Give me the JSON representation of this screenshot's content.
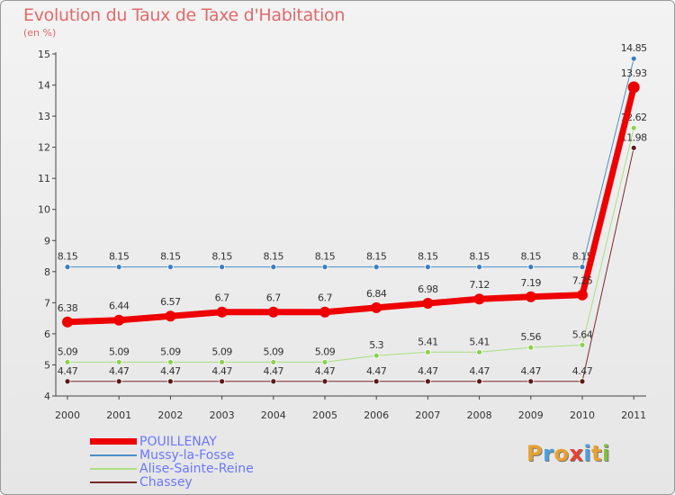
{
  "chart_data": {
    "type": "line",
    "title": "Evolution du Taux de Taxe d'Habitation",
    "ylabel": "(en %)",
    "xlabel": "",
    "x": [
      "2000",
      "2001",
      "2002",
      "2003",
      "2004",
      "2005",
      "2006",
      "2007",
      "2008",
      "2009",
      "2010",
      "2011"
    ],
    "ylim": [
      4,
      15
    ],
    "yticks": [
      4,
      5,
      6,
      7,
      8,
      9,
      10,
      11,
      12,
      13,
      14,
      15
    ],
    "grid": false,
    "series": [
      {
        "name": "Mussy-la-Fosse",
        "color": "#4a90c8",
        "point_color": "#3a7ec0",
        "width": 1,
        "values": [
          8.15,
          8.15,
          8.15,
          8.15,
          8.15,
          8.15,
          8.15,
          8.15,
          8.15,
          8.15,
          8.15,
          14.85
        ]
      },
      {
        "name": "Alise-Sainte-Reine",
        "color": "#a8e080",
        "point_color": "#8cd050",
        "width": 1,
        "values": [
          5.09,
          5.09,
          5.09,
          5.09,
          5.09,
          5.09,
          5.3,
          5.41,
          5.41,
          5.56,
          5.64,
          12.62
        ]
      },
      {
        "name": "Chassey",
        "color": "#7a2a2a",
        "point_color": "#5a1a1a",
        "width": 1,
        "values": [
          4.47,
          4.47,
          4.47,
          4.47,
          4.47,
          4.47,
          4.47,
          4.47,
          4.47,
          4.47,
          4.47,
          11.98
        ]
      },
      {
        "name": "POUILLENAY",
        "color": "#ee0000",
        "point_color": "#ee0000",
        "width": 7,
        "values": [
          6.38,
          6.44,
          6.57,
          6.7,
          6.7,
          6.7,
          6.84,
          6.98,
          7.12,
          7.19,
          7.25,
          13.93
        ]
      }
    ],
    "legend_order": [
      "POUILLENAY",
      "Mussy-la-Fosse",
      "Alise-Sainte-Reine",
      "Chassey"
    ],
    "legend_position": "bottom-left"
  },
  "logo": {
    "text": "Proxiti",
    "letters": [
      "P",
      "r",
      "o",
      "x",
      "i",
      "t",
      "i"
    ],
    "colors": [
      "#e8a030",
      "#4aa0e0",
      "#e8a030",
      "#e84030",
      "#4aa0e0",
      "#e8a030",
      "#80c040"
    ]
  }
}
